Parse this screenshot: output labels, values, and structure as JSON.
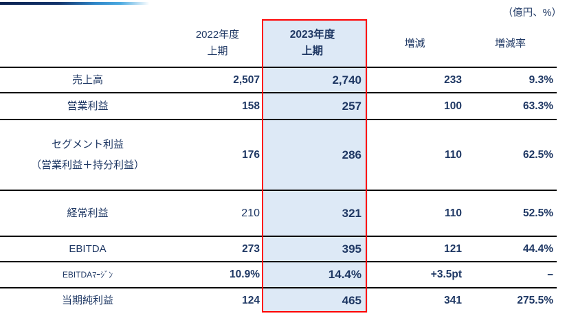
{
  "unit_note": "（億円、%）",
  "header": {
    "col_2022_line1": "2022年度",
    "col_2022_line2": "上期",
    "col_2023_line1": "2023年度",
    "col_2023_line2": "上期",
    "col_change": "増減",
    "col_change_rate": "増減率"
  },
  "table": {
    "rows": [
      {
        "label": "売上高",
        "fy2022": "2,507",
        "fy2023": "2,740",
        "change": "233",
        "rate": "9.3%"
      },
      {
        "label": "営業利益",
        "fy2022": "158",
        "fy2023": "257",
        "change": "100",
        "rate": "63.3%"
      },
      {
        "label": "セグメント利益",
        "label2": "（営業利益＋持分利益）",
        "fy2022": "176",
        "fy2023": "286",
        "change": "110",
        "rate": "62.5%"
      },
      {
        "label": "経常利益",
        "fy2022": "210",
        "fy2023": "321",
        "change": "110",
        "rate": "52.5%"
      },
      {
        "label": "EBITDA",
        "fy2022": "273",
        "fy2023": "395",
        "change": "121",
        "rate": "44.4%"
      },
      {
        "label": "EBITDAﾏｰｼﾞﾝ",
        "fy2022": "10.9%",
        "fy2023": "14.4%",
        "change": "+3.5pt",
        "rate": "–"
      },
      {
        "label": "当期純利益",
        "fy2022": "124",
        "fy2023": "465",
        "change": "341",
        "rate": "275.5%"
      }
    ]
  },
  "colors": {
    "text_navy": "#1f3864",
    "highlight_fill": "#dde9f6",
    "highlight_border": "#fe0000",
    "row_line": "#000000",
    "gradient_line_start": "#0a2150",
    "gradient_line_end": "#4aa9e0"
  }
}
